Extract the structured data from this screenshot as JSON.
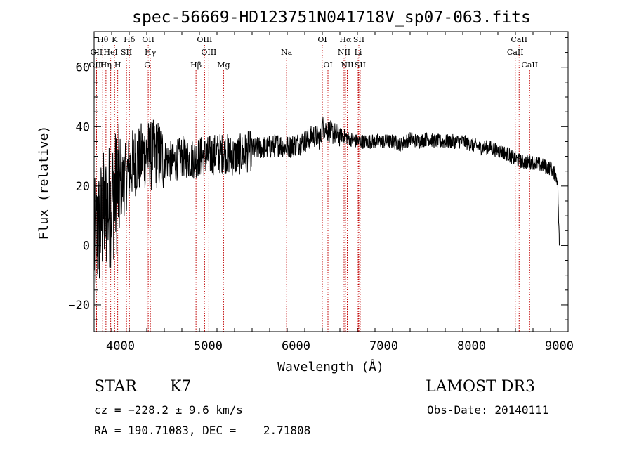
{
  "chart_data": {
    "type": "line",
    "title": "spec-56669-HD123751N041718V_sp07-063.fits",
    "xlabel": "Wavelength (Å)",
    "ylabel": "Flux (relative)",
    "xlim": [
      3700,
      9100
    ],
    "ylim": [
      -29,
      72
    ],
    "xticks": [
      4000,
      5000,
      6000,
      7000,
      8000,
      9000
    ],
    "yticks": [
      -20,
      0,
      20,
      40,
      60
    ],
    "series": [
      {
        "name": "flux",
        "x": [
          3700,
          3750,
          3800,
          3850,
          3900,
          3950,
          4000,
          4050,
          4100,
          4150,
          4200,
          4250,
          4300,
          4350,
          4400,
          4450,
          4500,
          4600,
          4700,
          4800,
          4900,
          5000,
          5100,
          5200,
          5300,
          5400,
          5500,
          5600,
          5700,
          5800,
          5900,
          6000,
          6100,
          6200,
          6280,
          6300,
          6350,
          6400,
          6500,
          6550,
          6600,
          6700,
          6800,
          6900,
          7000,
          7100,
          7200,
          7300,
          7400,
          7500,
          7600,
          7700,
          7800,
          7900,
          8000,
          8100,
          8200,
          8300,
          8400,
          8500,
          8600,
          8700,
          8800,
          8900,
          8950,
          8980,
          9000
        ],
        "values": [
          0,
          5,
          10,
          12,
          15,
          18,
          20,
          22,
          26,
          28,
          29,
          30,
          31,
          30,
          31,
          30,
          29,
          28,
          30,
          29,
          30,
          30,
          31,
          31,
          30,
          31,
          32,
          33,
          33,
          34,
          33,
          34,
          35,
          37,
          36,
          40,
          39,
          38,
          37,
          37,
          36,
          35,
          35,
          35,
          35,
          35,
          34,
          36,
          35,
          36,
          35,
          35,
          35,
          35,
          34,
          33,
          33,
          32,
          31,
          29,
          28,
          28,
          27,
          26,
          24,
          22,
          0
        ]
      }
    ],
    "line_markers": [
      {
        "label": "Hθ",
        "x": 3798,
        "row": 1
      },
      {
        "label": "K",
        "x": 3934,
        "row": 1
      },
      {
        "label": "Hδ",
        "x": 4102,
        "row": 1
      },
      {
        "label": "OII",
        "x": 4317,
        "row": 1
      },
      {
        "label": "OIII",
        "x": 4959,
        "row": 1
      },
      {
        "label": "OI",
        "x": 6300,
        "row": 1
      },
      {
        "label": "Hα",
        "x": 6563,
        "row": 1
      },
      {
        "label": "SII",
        "x": 6716,
        "row": 1
      },
      {
        "label": "CaII",
        "x": 8542,
        "row": 1
      },
      {
        "label": "OII",
        "x": 3727,
        "row": 2
      },
      {
        "label": "HeI",
        "x": 3889,
        "row": 2
      },
      {
        "label": "SII",
        "x": 4069,
        "row": 2
      },
      {
        "label": "Hγ",
        "x": 4341,
        "row": 2
      },
      {
        "label": "OIII",
        "x": 5007,
        "row": 2
      },
      {
        "label": "Na",
        "x": 5893,
        "row": 2
      },
      {
        "label": "NII",
        "x": 6548,
        "row": 2
      },
      {
        "label": "Li",
        "x": 6708,
        "row": 2
      },
      {
        "label": "CaII",
        "x": 8498,
        "row": 2
      },
      {
        "label": "OIII",
        "x": 3727,
        "row": 3
      },
      {
        "label": "Hη",
        "x": 3835,
        "row": 3
      },
      {
        "label": "H",
        "x": 3969,
        "row": 3
      },
      {
        "label": "G",
        "x": 4305,
        "row": 3
      },
      {
        "label": "Hβ",
        "x": 4861,
        "row": 3
      },
      {
        "label": "Mg",
        "x": 5175,
        "row": 3
      },
      {
        "label": "OI",
        "x": 6364,
        "row": 3
      },
      {
        "label": "NII",
        "x": 6584,
        "row": 3
      },
      {
        "label": "SII",
        "x": 6731,
        "row": 3
      },
      {
        "label": "CaII",
        "x": 8662,
        "row": 3
      }
    ]
  },
  "info": {
    "class_label": "STAR",
    "subclass": "K7",
    "survey": "LAMOST DR3",
    "cz": "cz = −228.2 ± 9.6 km/s",
    "obs_date": "Obs-Date: 20140111",
    "radec": "RA = 190.71083, DEC =    2.71808"
  }
}
